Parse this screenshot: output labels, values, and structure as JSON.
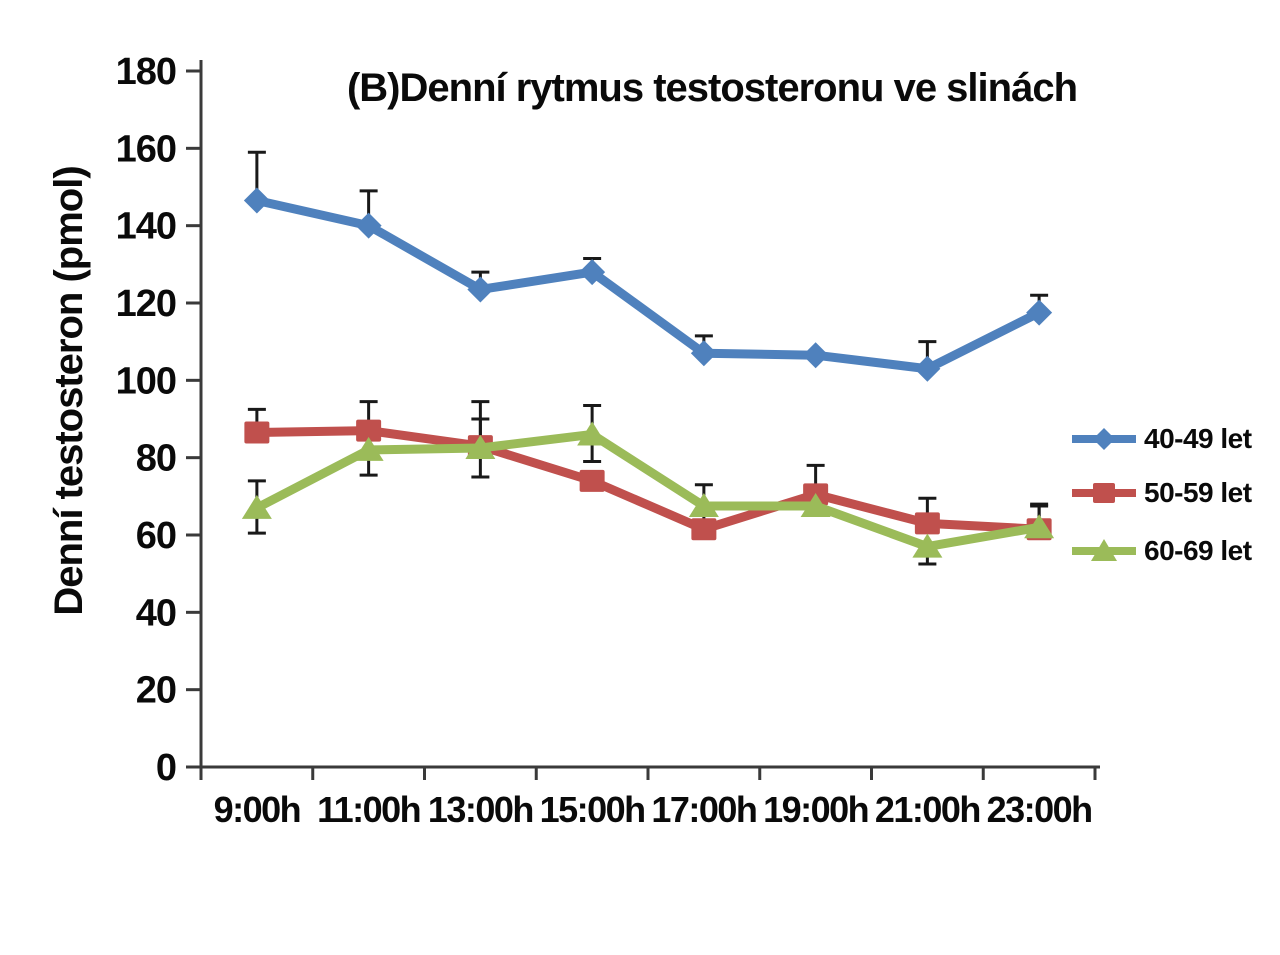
{
  "chart_data": {
    "type": "line",
    "title": "(B)Denní rytmus testosteronu ve slinách",
    "ylabel": "Denní testosteron (pmol)",
    "xlabel": "",
    "ylim": [
      0,
      180
    ],
    "ytick_step": 20,
    "ytick_labels": [
      "0",
      "20",
      "40",
      "60",
      "80",
      "100",
      "120",
      "140",
      "160",
      "180"
    ],
    "categories": [
      "9:00h",
      "11:00h",
      "13:00h",
      "15:00h",
      "17:00h",
      "19:00h",
      "21:00h",
      "23:00h"
    ],
    "grid": false,
    "legend_position": "right",
    "axis_color": "#3a3a3a",
    "error_bar_color": "#191919",
    "series": [
      {
        "name": "40-49 let",
        "color": "#4F81BD",
        "marker": "diamond",
        "values": [
          146.5,
          140,
          123.5,
          128,
          107,
          106.5,
          103,
          117.5
        ],
        "err_up": [
          12.5,
          9,
          4.5,
          3.5,
          4.5,
          null,
          7,
          4.5
        ],
        "err_down": [
          null,
          null,
          null,
          null,
          null,
          null,
          null,
          null
        ]
      },
      {
        "name": "50-59 let",
        "color": "#C0504D",
        "marker": "square",
        "values": [
          86.5,
          87,
          83,
          74,
          61.5,
          70.5,
          63,
          61.5
        ],
        "err_up": [
          6,
          7.5,
          7,
          null,
          5,
          7.5,
          6.5,
          6
        ],
        "err_down": [
          null,
          null,
          null,
          null,
          null,
          null,
          null,
          null
        ]
      },
      {
        "name": "60-69 let",
        "color": "#9BBB59",
        "marker": "triangle",
        "values": [
          67,
          82,
          82.5,
          86,
          67.5,
          67.5,
          57,
          62
        ],
        "err_up": [
          7,
          null,
          12,
          7.5,
          5.5,
          null,
          null,
          6
        ],
        "err_down": [
          6.5,
          6.5,
          7.5,
          7,
          null,
          null,
          4.5,
          null
        ]
      }
    ]
  }
}
